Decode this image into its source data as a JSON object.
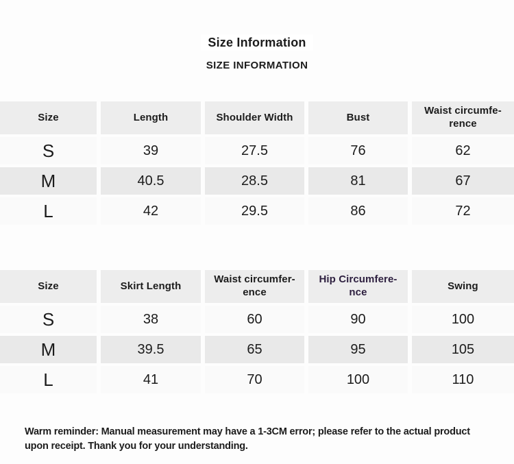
{
  "page": {
    "title": "Size Information",
    "subtitle": "SIZE INFORMATION",
    "footer": "Warm reminder: Manual measurement may have a 1-3CM error; please refer to the actual product upon receipt. Thank you for your understanding."
  },
  "colors": {
    "page_bg": "#fdfdfd",
    "header_cell_bg": "#ededed",
    "row_light_bg": "#fafafa",
    "row_dark_bg": "#e9e9e9",
    "text": "#1c1c1c",
    "hip_header_text": "#2e2040"
  },
  "tables": [
    {
      "name": "top-garment-size-table",
      "columns": [
        "Size",
        "Length",
        "Shoulder Width",
        "Bust",
        "Waist circumfe-\nrence"
      ],
      "rows": [
        {
          "size": "S",
          "values": [
            "39",
            "27.5",
            "76",
            "62"
          ]
        },
        {
          "size": "M",
          "values": [
            "40.5",
            "28.5",
            "81",
            "67"
          ]
        },
        {
          "size": "L",
          "values": [
            "42",
            "29.5",
            "86",
            "72"
          ]
        }
      ]
    },
    {
      "name": "bottom-skirt-size-table",
      "columns": [
        "Size",
        "Skirt Length",
        "Waist circumfer-\nence",
        "Hip Circumfere-\nnce",
        "Swing"
      ],
      "rows": [
        {
          "size": "S",
          "values": [
            "38",
            "60",
            "90",
            "100"
          ]
        },
        {
          "size": "M",
          "values": [
            "39.5",
            "65",
            "95",
            "105"
          ]
        },
        {
          "size": "L",
          "values": [
            "41",
            "70",
            "100",
            "110"
          ]
        }
      ]
    }
  ]
}
